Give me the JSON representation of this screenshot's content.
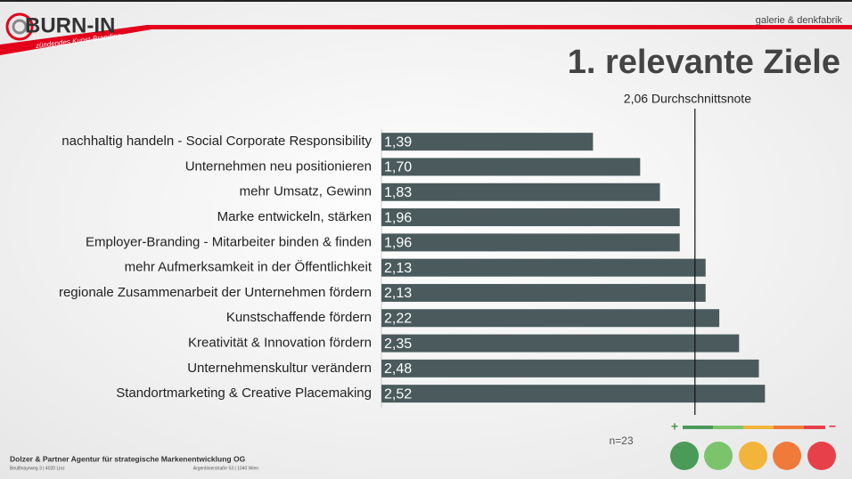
{
  "header": {
    "logo": "BURN-IN",
    "logo_tagline": "zündendes Kunst-Branding",
    "brand": "galerie & denkfabrik"
  },
  "chart_data": {
    "type": "hbar",
    "title": "1. relevante Ziele",
    "categories": [
      "nachhaltig handeln - Social Corporate Responsibility",
      "Unternehmen neu positionieren",
      "mehr Umsatz, Gewinn",
      "Marke entwickeln, stärken",
      "Employer-Branding - Mitarbeiter binden & finden",
      "mehr Aufmerksamkeit in der Öffentlichkeit",
      "regionale Zusammenarbeit der Unternehmen fördern",
      "Kunstschaffende fördern",
      "Kreativität & Innovation fördern",
      "Unternehmenskultur verändern",
      "Standortmarketing & Creative Placemaking"
    ],
    "values": [
      1.39,
      1.7,
      1.83,
      1.96,
      1.96,
      2.13,
      2.13,
      2.22,
      2.35,
      2.48,
      2.52
    ],
    "value_labels": [
      "1,39",
      "1,70",
      "1,83",
      "1,96",
      "1,96",
      "2,13",
      "2,13",
      "2,22",
      "2,35",
      "2,48",
      "2,52"
    ],
    "color": "#4b5b5d",
    "xlim": [
      0,
      2.6
    ],
    "reference_line": {
      "value": 2.06,
      "label": "2,06 Durchschnittsnote"
    },
    "sample_note": "n=23",
    "scale_legend": {
      "plus": "+",
      "minus": "−"
    }
  },
  "footer": {
    "company": "Dolzer & Partner Agentur für strategische Markenentwicklung OG",
    "address_left": "Beulfmayrweg 3 | 4020 Linz",
    "address_right": "Argentinierstraße 53 | 1040 Wien"
  }
}
